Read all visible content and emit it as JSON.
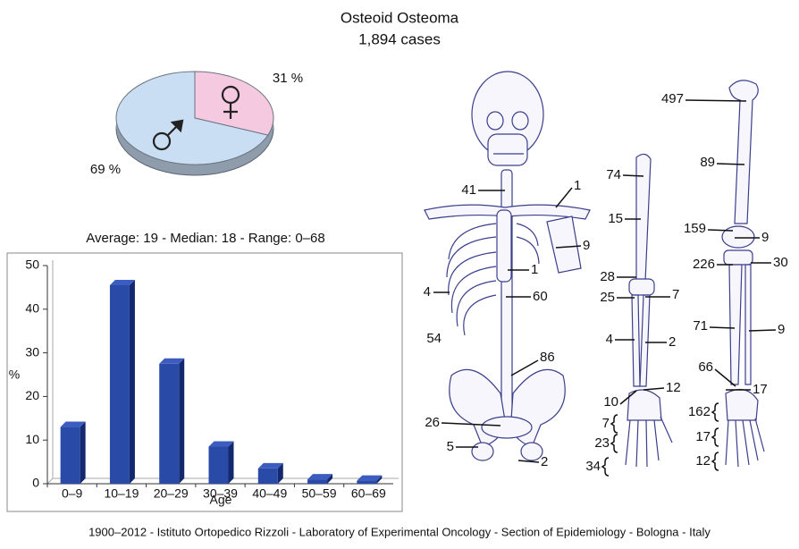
{
  "title": "Osteoid Osteoma",
  "subtitle": "1,894 cases",
  "footer": "1900–2012 - Istituto Ortopedico Rizzoli - Laboratory of Experimental Oncology - Section of Epidemiology - Bologna - Italy",
  "chart_data": [
    {
      "type": "pie",
      "values": [
        31,
        69
      ],
      "value_labels": [
        "31 %",
        "69 %"
      ],
      "colors": [
        "#f5c9e0",
        "#c9def2"
      ]
    },
    {
      "type": "bar",
      "title": "Average: 19 - Median: 18 - Range: 0–68",
      "categories": [
        "0–9",
        "10–19",
        "20–29",
        "30–39",
        "40–49",
        "50–59",
        "60–69"
      ],
      "values": [
        13,
        45.5,
        27.5,
        8.5,
        3.5,
        1,
        0.7
      ],
      "color": "#2a4aa8",
      "xlabel": "Age",
      "ylabel": "%",
      "ylim": [
        0,
        50
      ],
      "yticks": [
        0,
        10,
        20,
        30,
        40,
        50
      ],
      "grid": false
    }
  ],
  "skeleton_labels": [
    41,
    1,
    9,
    1,
    4,
    60,
    86,
    54,
    26,
    5,
    2,
    74,
    15,
    28,
    25,
    7,
    4,
    2,
    10,
    12,
    7,
    23,
    34,
    497,
    89,
    159,
    9,
    226,
    30,
    71,
    9,
    66,
    17,
    162,
    17,
    12
  ]
}
